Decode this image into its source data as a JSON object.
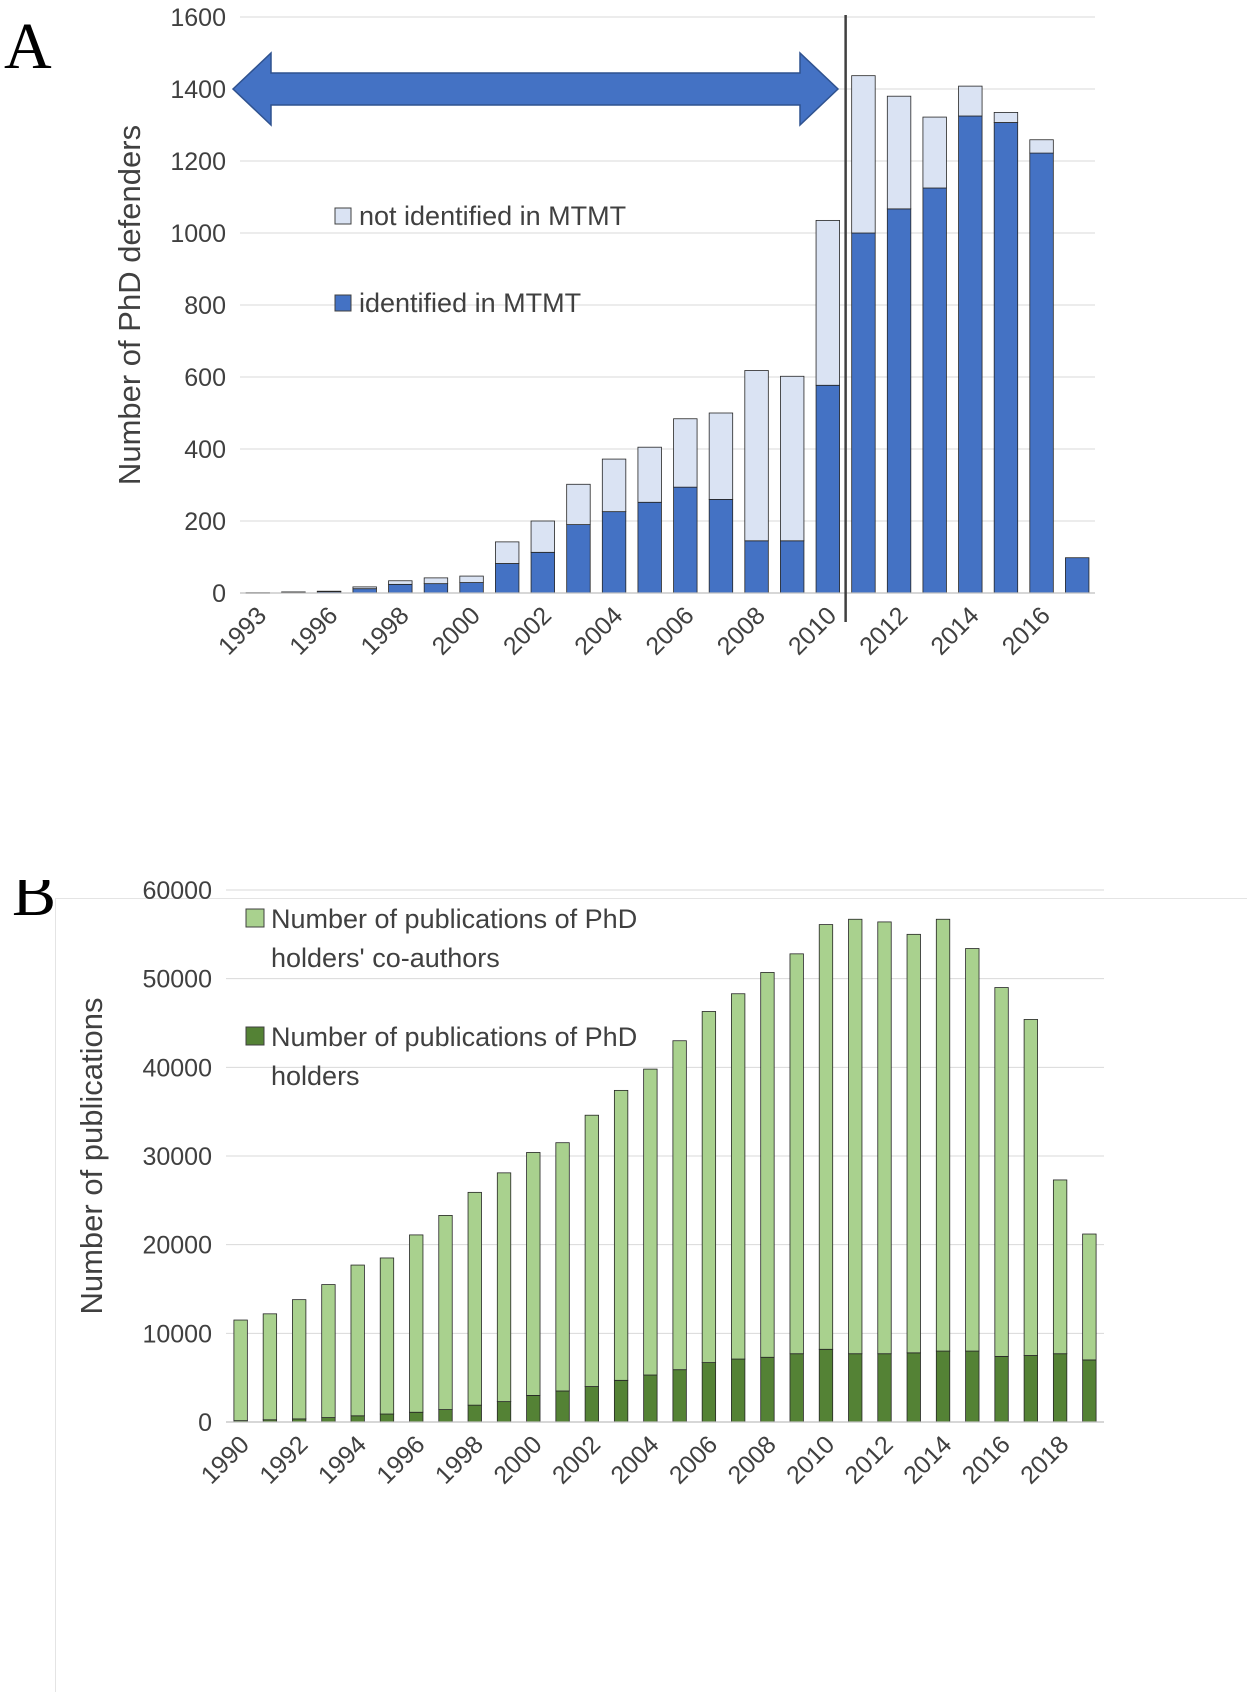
{
  "chart_data": [
    {
      "panel_label": "A",
      "type": "bar",
      "stacked": true,
      "ylabel": "Number of PhD defenders",
      "ylim": [
        0,
        1600
      ],
      "yticks": [
        0,
        200,
        400,
        600,
        800,
        1000,
        1200,
        1400,
        1600
      ],
      "x": [
        1993,
        1995,
        1996,
        1997,
        1998,
        1999,
        2000,
        2001,
        2002,
        2003,
        2004,
        2005,
        2006,
        2007,
        2008,
        2009,
        2010,
        2011,
        2012,
        2013,
        2014,
        2015,
        2016,
        2017
      ],
      "xtick_labels": [
        "1993",
        "1996",
        "1998",
        "2000",
        "2002",
        "2004",
        "2006",
        "2008",
        "2010",
        "2012",
        "2014",
        "2016"
      ],
      "series": [
        {
          "name": "identified in MTMT",
          "color": "#4472c4",
          "values": [
            1,
            2,
            4,
            12,
            24,
            26,
            29,
            82,
            113,
            190,
            226,
            252,
            294,
            260,
            145,
            145,
            577,
            1000,
            1067,
            1125,
            1325,
            1307,
            1222,
            98
          ]
        },
        {
          "name": "not identified in MTMT",
          "color": "#dae3f3",
          "values": [
            0,
            1,
            1,
            5,
            10,
            16,
            18,
            60,
            87,
            112,
            146,
            153,
            190,
            240,
            473,
            457,
            458,
            437,
            313,
            197,
            83,
            28,
            37,
            0
          ]
        }
      ],
      "annotations": {
        "double_arrow": {
          "from": 1993,
          "to": 2010,
          "y": 1400,
          "color": "#4472c4"
        },
        "vertical_line": {
          "x": 2010.5,
          "color": "#404040"
        }
      },
      "legend": "center-left",
      "grid": "horizontal"
    },
    {
      "panel_label": "B",
      "type": "bar",
      "stacked": true,
      "ylabel": "Number of publications",
      "ylim": [
        0,
        60000
      ],
      "yticks": [
        0,
        10000,
        20000,
        30000,
        40000,
        50000,
        60000
      ],
      "x": [
        1990,
        1991,
        1992,
        1993,
        1994,
        1995,
        1996,
        1997,
        1998,
        1999,
        2000,
        2001,
        2002,
        2003,
        2004,
        2005,
        2006,
        2007,
        2008,
        2009,
        2010,
        2011,
        2012,
        2013,
        2014,
        2015,
        2016,
        2017,
        2018,
        2019
      ],
      "xtick_labels": [
        "1990",
        "1992",
        "1994",
        "1996",
        "1998",
        "2000",
        "2002",
        "2004",
        "2006",
        "2008",
        "2010",
        "2012",
        "2014",
        "2016",
        "2018"
      ],
      "series": [
        {
          "name": "Number of publications of PhD holders",
          "color": "#548235",
          "values": [
            150,
            250,
            350,
            500,
            700,
            900,
            1100,
            1400,
            1900,
            2300,
            3000,
            3500,
            4000,
            4700,
            5300,
            5900,
            6700,
            7100,
            7300,
            7700,
            8200,
            7700,
            7700,
            7800,
            8000,
            8000,
            7400,
            7500,
            7700,
            7000
          ]
        },
        {
          "name": "Number of publications of PhD holders' co-authors",
          "color": "#a9d18e",
          "values": [
            11350,
            11950,
            13450,
            15000,
            17000,
            17600,
            20000,
            21900,
            24000,
            25800,
            27400,
            28000,
            30600,
            32700,
            34500,
            37100,
            39600,
            41200,
            43400,
            45100,
            47900,
            49000,
            48700,
            47200,
            48700,
            45400,
            41600,
            37900,
            19600,
            14200
          ]
        }
      ],
      "legend": "top-left",
      "grid": "horizontal"
    }
  ]
}
